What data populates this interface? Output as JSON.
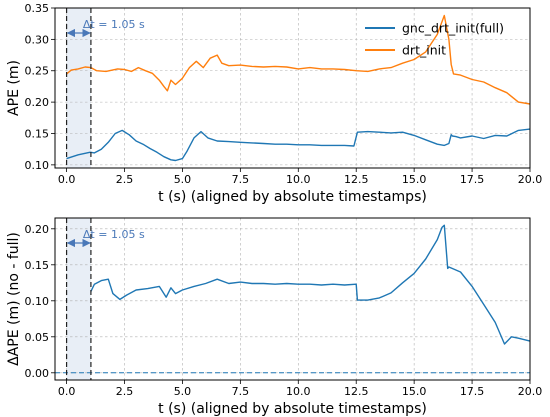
{
  "chart_data": [
    {
      "type": "line",
      "xlabel": "t (s) (aligned by absolute timestamps)",
      "ylabel": "APE (m)",
      "xlim": [
        -0.5,
        20.0
      ],
      "ylim": [
        0.095,
        0.35
      ],
      "xticks": [
        0.0,
        2.5,
        5.0,
        7.5,
        10.0,
        12.5,
        15.0,
        17.5,
        20.0
      ],
      "xtick_labels": [
        "0.0",
        "2.5",
        "5.0",
        "7.5",
        "10.0",
        "12.5",
        "15.0",
        "17.5",
        "20.0"
      ],
      "yticks": [
        0.1,
        0.15,
        0.2,
        0.25,
        0.3,
        0.35
      ],
      "ytick_labels": [
        "0.10",
        "0.15",
        "0.20",
        "0.25",
        "0.30",
        "0.35"
      ],
      "grid": true,
      "legend_position": "top-right",
      "shaded_span": [
        0.0,
        1.05
      ],
      "vlines": [
        0.0,
        1.05
      ],
      "annotation": "Δt = 1.05 s",
      "series": [
        {
          "name": "gnc_drt_init(full)",
          "color": "#1f77b4",
          "x": [
            0.0,
            0.5,
            1.0,
            1.05,
            1.2,
            1.5,
            1.8,
            2.1,
            2.4,
            2.7,
            3.0,
            3.3,
            3.6,
            3.9,
            4.2,
            4.5,
            4.7,
            5.0,
            5.2,
            5.5,
            5.8,
            6.1,
            6.5,
            7.0,
            7.5,
            8.0,
            8.5,
            9.0,
            9.5,
            10.0,
            10.5,
            11.0,
            11.5,
            12.0,
            12.4,
            12.55,
            13.0,
            13.5,
            14.0,
            14.5,
            15.0,
            15.5,
            16.0,
            16.3,
            16.5,
            16.6,
            16.65,
            16.8,
            17.0,
            17.5,
            18.0,
            18.5,
            19.0,
            19.5,
            20.0
          ],
          "y": [
            0.11,
            0.116,
            0.12,
            0.12,
            0.119,
            0.125,
            0.136,
            0.15,
            0.155,
            0.148,
            0.138,
            0.133,
            0.126,
            0.12,
            0.113,
            0.108,
            0.107,
            0.11,
            0.122,
            0.143,
            0.153,
            0.143,
            0.138,
            0.137,
            0.136,
            0.135,
            0.134,
            0.133,
            0.133,
            0.132,
            0.132,
            0.131,
            0.131,
            0.131,
            0.13,
            0.152,
            0.153,
            0.152,
            0.151,
            0.152,
            0.147,
            0.14,
            0.133,
            0.131,
            0.134,
            0.148,
            0.146,
            0.145,
            0.143,
            0.146,
            0.142,
            0.147,
            0.146,
            0.155,
            0.157
          ]
        },
        {
          "name": "drt_init",
          "color": "#ff7f0e",
          "x": [
            0.0,
            0.2,
            0.5,
            0.8,
            1.05,
            1.3,
            1.7,
            2.2,
            2.5,
            2.8,
            3.1,
            3.4,
            3.7,
            4.0,
            4.2,
            4.35,
            4.5,
            4.7,
            5.0,
            5.3,
            5.6,
            5.9,
            6.2,
            6.5,
            6.7,
            7.0,
            7.5,
            8.0,
            8.5,
            9.0,
            9.5,
            10.0,
            10.5,
            11.0,
            11.5,
            12.0,
            12.5,
            13.0,
            13.5,
            14.0,
            14.5,
            15.0,
            15.5,
            16.0,
            16.3,
            16.5,
            16.6,
            16.7,
            17.0,
            17.5,
            18.0,
            18.5,
            19.0,
            19.5,
            20.0
          ],
          "y": [
            0.245,
            0.251,
            0.253,
            0.256,
            0.255,
            0.25,
            0.249,
            0.253,
            0.252,
            0.249,
            0.255,
            0.25,
            0.246,
            0.235,
            0.225,
            0.218,
            0.235,
            0.228,
            0.238,
            0.255,
            0.265,
            0.255,
            0.27,
            0.275,
            0.262,
            0.258,
            0.259,
            0.257,
            0.256,
            0.257,
            0.256,
            0.253,
            0.255,
            0.253,
            0.253,
            0.252,
            0.25,
            0.249,
            0.253,
            0.255,
            0.262,
            0.268,
            0.28,
            0.308,
            0.338,
            0.3,
            0.26,
            0.245,
            0.243,
            0.236,
            0.232,
            0.223,
            0.215,
            0.2,
            0.197
          ]
        }
      ]
    },
    {
      "type": "line",
      "xlabel": "t (s) (aligned by absolute timestamps)",
      "ylabel": "ΔAPE (m)  (no - full)",
      "xlim": [
        -0.5,
        20.0
      ],
      "ylim": [
        -0.01,
        0.215
      ],
      "xticks": [
        0.0,
        2.5,
        5.0,
        7.5,
        10.0,
        12.5,
        15.0,
        17.5,
        20.0
      ],
      "xtick_labels": [
        "0.0",
        "2.5",
        "5.0",
        "7.5",
        "10.0",
        "12.5",
        "15.0",
        "17.5",
        "20.0"
      ],
      "yticks": [
        0.0,
        0.05,
        0.1,
        0.15,
        0.2
      ],
      "ytick_labels": [
        "0.00",
        "0.05",
        "0.10",
        "0.15",
        "0.20"
      ],
      "grid": true,
      "shaded_span": [
        0.0,
        1.05
      ],
      "vlines": [
        0.0,
        1.05
      ],
      "hline": 0.0,
      "annotation": "Δt = 1.05 s",
      "series": [
        {
          "color": "#1f77b4",
          "x": [
            1.05,
            1.2,
            1.5,
            1.8,
            2.0,
            2.3,
            2.6,
            3.0,
            3.5,
            4.0,
            4.3,
            4.5,
            4.7,
            5.0,
            5.5,
            6.0,
            6.5,
            7.0,
            7.5,
            8.0,
            8.5,
            9.0,
            9.5,
            10.0,
            10.5,
            11.0,
            11.5,
            12.0,
            12.5,
            12.55,
            13.0,
            13.5,
            14.0,
            14.5,
            15.0,
            15.5,
            16.0,
            16.2,
            16.3,
            16.45,
            16.5,
            17.0,
            17.5,
            18.0,
            18.5,
            18.9,
            19.2,
            19.5,
            20.0
          ],
          "y": [
            0.113,
            0.123,
            0.128,
            0.13,
            0.11,
            0.102,
            0.108,
            0.115,
            0.117,
            0.12,
            0.105,
            0.118,
            0.11,
            0.115,
            0.12,
            0.124,
            0.13,
            0.124,
            0.126,
            0.124,
            0.124,
            0.123,
            0.124,
            0.123,
            0.123,
            0.122,
            0.123,
            0.122,
            0.123,
            0.101,
            0.101,
            0.104,
            0.111,
            0.125,
            0.138,
            0.158,
            0.185,
            0.202,
            0.205,
            0.145,
            0.147,
            0.14,
            0.12,
            0.095,
            0.07,
            0.04,
            0.05,
            0.048,
            0.044
          ]
        }
      ]
    }
  ]
}
